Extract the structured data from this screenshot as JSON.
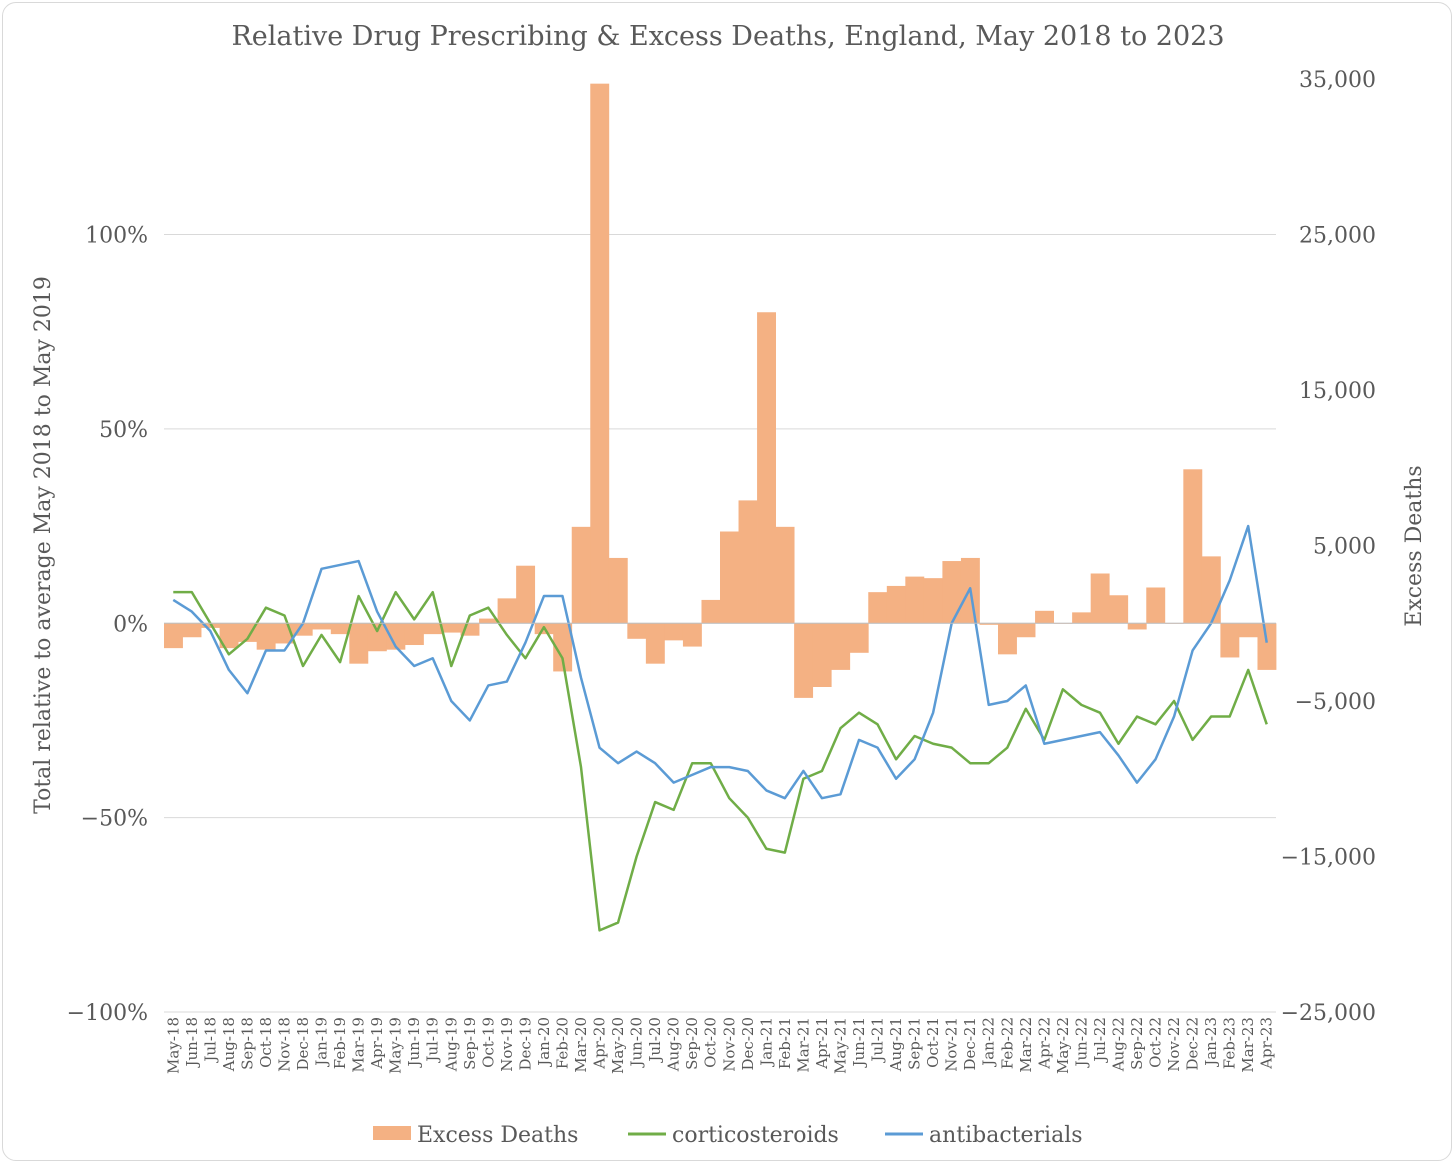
{
  "chart_data": {
    "type": "bar-line-combo",
    "title": "Relative Drug Prescribing & Excess Deaths, England, May 2018 to 2023",
    "ylabel_left": "Total relative to average May 2018 to May 2019",
    "ylabel_right": "Excess Deaths",
    "ylim_left": [
      -100,
      140
    ],
    "ylim_right": [
      -25000,
      35000
    ],
    "yticks_left": [
      -100,
      -50,
      0,
      50,
      100
    ],
    "yticks_left_labels": [
      "−100%",
      "−50%",
      "0%",
      "50%",
      "100%"
    ],
    "yticks_right": [
      -25000,
      -15000,
      -5000,
      5000,
      15000,
      25000,
      35000
    ],
    "yticks_right_labels": [
      "−25,000",
      "−15,000",
      "−5,000",
      "5,000",
      "15,000",
      "25,000",
      "35,000"
    ],
    "grid": true,
    "legend_position": "bottom",
    "categories": [
      "May-18",
      "Jun-18",
      "Jul-18",
      "Aug-18",
      "Sep-18",
      "Oct-18",
      "Nov-18",
      "Dec-18",
      "Jan-19",
      "Feb-19",
      "Mar-19",
      "Apr-19",
      "May-19",
      "Jun-19",
      "Jul-19",
      "Aug-19",
      "Sep-19",
      "Oct-19",
      "Nov-19",
      "Dec-19",
      "Jan-20",
      "Feb-20",
      "Mar-20",
      "Apr-20",
      "May-20",
      "Jun-20",
      "Jul-20",
      "Aug-20",
      "Sep-20",
      "Oct-20",
      "Nov-20",
      "Dec-20",
      "Jan-21",
      "Feb-21",
      "Mar-21",
      "Apr-21",
      "May-21",
      "Jun-21",
      "Jul-21",
      "Aug-21",
      "Sep-21",
      "Oct-21",
      "Nov-21",
      "Dec-21",
      "Jan-22",
      "Feb-22",
      "Mar-22",
      "Apr-22",
      "May-22",
      "Jun-22",
      "Jul-22",
      "Aug-22",
      "Sep-22",
      "Oct-22",
      "Nov-22",
      "Dec-22",
      "Jan-23",
      "Feb-23",
      "Mar-23",
      "Apr-23"
    ],
    "series": [
      {
        "name": "Excess Deaths",
        "type": "bar",
        "axis": "right",
        "color": "#f4b183",
        "values": [
          -1600,
          -900,
          -300,
          -1600,
          -1200,
          -1700,
          -1300,
          -800,
          -400,
          -700,
          -2600,
          -1800,
          -1700,
          -1400,
          -700,
          -600,
          -800,
          300,
          1600,
          3700,
          -700,
          -3100,
          6200,
          34700,
          4200,
          -1000,
          -2600,
          -1100,
          -1500,
          1500,
          5900,
          7900,
          20000,
          6200,
          -4800,
          -4100,
          -3000,
          -1900,
          2000,
          2400,
          3000,
          2900,
          4000,
          4200,
          -100,
          -2000,
          -900,
          800,
          0,
          700,
          3200,
          1800,
          -400,
          2300,
          0,
          9900,
          4300,
          -2200,
          -900,
          -3000
        ]
      },
      {
        "name": "corticosteroids",
        "type": "line",
        "axis": "left",
        "color": "#70ad47",
        "values": [
          8,
          8,
          0,
          -8,
          -4,
          4,
          2,
          -11,
          -3,
          -10,
          7,
          -2,
          8,
          1,
          8,
          -11,
          2,
          4,
          -3,
          -9,
          -1,
          -9,
          -37,
          -79,
          -77,
          -60,
          -46,
          -48,
          -36,
          -36,
          -45,
          -50,
          -58,
          -59,
          -40,
          -38,
          -27,
          -23,
          -26,
          -35,
          -29,
          -31,
          -32,
          -36,
          -36,
          -32,
          -22,
          -30,
          -17,
          -21,
          -23,
          -31,
          -24,
          -26,
          -20,
          -30,
          -24,
          -24,
          -12,
          -26
        ]
      },
      {
        "name": "antibacterials",
        "type": "line",
        "axis": "left",
        "color": "#5b9bd5",
        "values": [
          6,
          3,
          -2,
          -12,
          -18,
          -7,
          -7,
          0,
          14,
          15,
          16,
          3,
          -6,
          -11,
          -9,
          -20,
          -25,
          -16,
          -15,
          -5,
          7,
          7,
          -14,
          -32,
          -36,
          -33,
          -36,
          -41,
          -39,
          -37,
          -37,
          -38,
          -43,
          -45,
          -38,
          -45,
          -44,
          -30,
          -32,
          -40,
          -35,
          -23,
          0,
          9,
          -21,
          -20,
          -16,
          -31,
          -30,
          -29,
          -28,
          -34,
          -41,
          -35,
          -24,
          -7,
          0,
          11,
          25,
          -5
        ]
      }
    ]
  }
}
